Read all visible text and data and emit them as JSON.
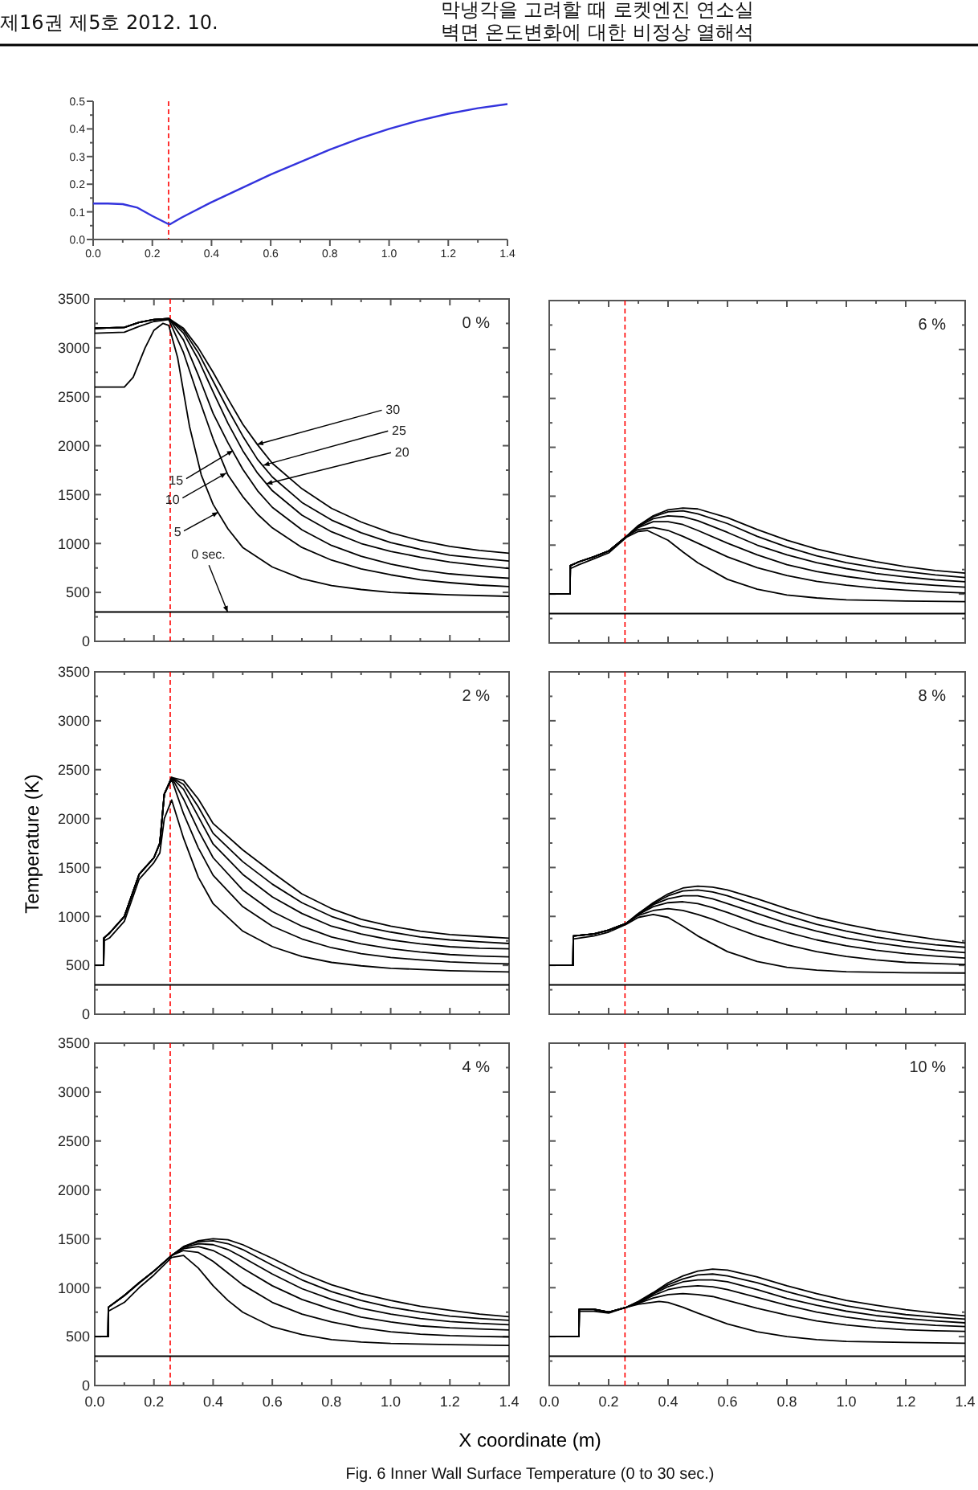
{
  "chart_data": [
    {
      "type": "line",
      "xlim": [
        0,
        1.4
      ],
      "ylim": [
        0,
        0.5
      ],
      "xticks": [
        {
          "value": 0,
          "label": "0.0"
        },
        {
          "value": 0.2,
          "label": "0.2"
        },
        {
          "value": 0.4,
          "label": "0.4"
        },
        {
          "value": 0.6,
          "label": "0.6"
        },
        {
          "value": 0.8,
          "label": "0.8"
        },
        {
          "value": 1.0,
          "label": "1.0"
        },
        {
          "value": 1.2,
          "label": "1.2"
        },
        {
          "value": 1.4,
          "label": "1.4"
        }
      ],
      "yticks": [
        {
          "value": 0,
          "label": "0.0"
        },
        {
          "value": 0.1,
          "label": "0.1"
        },
        {
          "value": 0.2,
          "label": "0.2"
        },
        {
          "value": 0.3,
          "label": "0.3"
        },
        {
          "value": 0.4,
          "label": "0.4"
        },
        {
          "value": 0.5,
          "label": "0.5"
        }
      ],
      "ref_lines": [
        {
          "axis": "x",
          "value": 0.255,
          "color": "#ff0000",
          "line_style": "dashed"
        }
      ],
      "annotations": [
        "제16권 제5호 2012. 10.",
        "막냉각을 고려할 때 로켓엔진 연소실",
        "벽면 온도변화에 대한 비정상 열해석"
      ],
      "series": [
        {
          "color": "#3333dd",
          "x": [
            0,
            0.05,
            0.1,
            0.15,
            0.2,
            0.25,
            0.26,
            0.3,
            0.4,
            0.5,
            0.6,
            0.7,
            0.8,
            0.9,
            1.0,
            1.1,
            1.2,
            1.3,
            1.4
          ],
          "values": [
            0.13,
            0.13,
            0.128,
            0.115,
            0.085,
            0.058,
            0.055,
            0.08,
            0.135,
            0.185,
            0.235,
            0.28,
            0.325,
            0.365,
            0.4,
            0.43,
            0.455,
            0.475,
            0.49
          ]
        }
      ]
    },
    {
      "type": "line",
      "title": "0 %",
      "xlim": [
        0,
        1.4
      ],
      "ylim": [
        0,
        3500
      ],
      "tick_labels": "y",
      "xticks": [
        0,
        0.2,
        0.4,
        0.6,
        0.8,
        1.0,
        1.2,
        1.4
      ],
      "yticks": [
        0,
        500,
        1000,
        1500,
        2000,
        2500,
        3000,
        3500
      ],
      "ref_lines": [
        {
          "axis": "x",
          "value": 0.255,
          "color": "#ff0000",
          "line_style": "dashed"
        }
      ],
      "annotations": [
        {
          "text": "30",
          "x": 0.549,
          "y": 2013
        },
        {
          "text": "25",
          "x": 0.57,
          "y": 1800
        },
        {
          "text": "20",
          "x": 0.58,
          "y": 1610
        },
        {
          "text": "15",
          "x": 0.467,
          "y": 1950
        },
        {
          "text": "10",
          "x": 0.444,
          "y": 1720
        },
        {
          "text": "5",
          "x": 0.417,
          "y": 1320
        },
        {
          "text": "0 sec.",
          "x": 0.449,
          "y": 300
        }
      ],
      "series": [
        {
          "color": "#000000",
          "x": [
            0,
            1.4
          ],
          "values": [
            300,
            300
          ]
        },
        {
          "color": "#000000",
          "x": [
            0,
            0.1,
            0.13,
            0.17,
            0.2,
            0.23,
            0.25,
            0.28,
            0.32,
            0.36,
            0.4,
            0.45,
            0.5,
            0.6,
            0.7,
            0.8,
            0.9,
            1.0,
            1.2,
            1.4
          ],
          "values": [
            2600,
            2600,
            2700,
            3000,
            3180,
            3250,
            3230,
            2900,
            2200,
            1700,
            1400,
            1150,
            960,
            760,
            640,
            570,
            530,
            500,
            475,
            460
          ]
        },
        {
          "color": "#000000",
          "x": [
            0,
            0.1,
            0.15,
            0.2,
            0.25,
            0.3,
            0.35,
            0.4,
            0.45,
            0.5,
            0.55,
            0.6,
            0.7,
            0.8,
            0.9,
            1.0,
            1.1,
            1.2,
            1.3,
            1.4
          ],
          "values": [
            3150,
            3160,
            3220,
            3270,
            3290,
            2950,
            2500,
            2070,
            1700,
            1480,
            1300,
            1160,
            960,
            830,
            740,
            680,
            630,
            600,
            575,
            560
          ]
        },
        {
          "color": "#000000",
          "x": [
            0,
            0.1,
            0.15,
            0.2,
            0.25,
            0.3,
            0.35,
            0.4,
            0.45,
            0.5,
            0.55,
            0.6,
            0.7,
            0.8,
            0.9,
            1.0,
            1.1,
            1.2,
            1.3,
            1.4
          ],
          "values": [
            3200,
            3210,
            3260,
            3290,
            3300,
            3080,
            2720,
            2330,
            2030,
            1760,
            1540,
            1370,
            1140,
            980,
            870,
            790,
            730,
            690,
            665,
            645
          ]
        },
        {
          "color": "#000000",
          "x": [
            0,
            0.1,
            0.15,
            0.2,
            0.25,
            0.3,
            0.35,
            0.4,
            0.45,
            0.5,
            0.55,
            0.6,
            0.7,
            0.8,
            0.9,
            1.0,
            1.1,
            1.2,
            1.3,
            1.4
          ],
          "values": [
            3200,
            3210,
            3260,
            3290,
            3300,
            3150,
            2880,
            2550,
            2230,
            1950,
            1720,
            1540,
            1290,
            1120,
            1000,
            920,
            860,
            810,
            775,
            745
          ]
        },
        {
          "color": "#000000",
          "x": [
            0,
            0.1,
            0.15,
            0.2,
            0.25,
            0.3,
            0.35,
            0.4,
            0.45,
            0.5,
            0.55,
            0.6,
            0.7,
            0.8,
            0.9,
            1.0,
            1.1,
            1.2,
            1.3,
            1.4
          ],
          "values": [
            3200,
            3210,
            3260,
            3290,
            3300,
            3180,
            2950,
            2660,
            2370,
            2100,
            1860,
            1680,
            1420,
            1240,
            1110,
            1010,
            940,
            880,
            850,
            820
          ]
        },
        {
          "color": "#000000",
          "x": [
            0,
            0.1,
            0.15,
            0.2,
            0.25,
            0.3,
            0.35,
            0.4,
            0.45,
            0.5,
            0.55,
            0.6,
            0.7,
            0.8,
            0.9,
            1.0,
            1.1,
            1.2,
            1.3,
            1.4
          ],
          "values": [
            3200,
            3210,
            3260,
            3290,
            3300,
            3200,
            3000,
            2750,
            2480,
            2220,
            2010,
            1820,
            1560,
            1360,
            1220,
            1110,
            1030,
            970,
            930,
            900
          ]
        }
      ]
    },
    {
      "type": "line",
      "title": "6 %",
      "xlim": [
        0,
        1.4
      ],
      "ylim": [
        0,
        3500
      ],
      "tick_labels": false,
      "xticks": [
        0,
        0.2,
        0.4,
        0.6,
        0.8,
        1.0,
        1.2,
        1.4
      ],
      "yticks": [
        0,
        500,
        1000,
        1500,
        2000,
        2500,
        3000,
        3500
      ],
      "ref_lines": [
        {
          "axis": "x",
          "value": 0.255,
          "color": "#ff0000",
          "line_style": "dashed"
        }
      ],
      "series": [
        {
          "color": "#000000",
          "x": [
            0,
            1.4
          ],
          "values": [
            300,
            300
          ]
        },
        {
          "color": "#000000",
          "x": [
            0,
            0.07,
            0.071,
            0.1,
            0.15,
            0.2,
            0.26,
            0.3,
            0.33,
            0.4,
            0.45,
            0.5,
            0.6,
            0.7,
            0.8,
            0.9,
            1.0,
            1.2,
            1.4
          ],
          "values": [
            500,
            500,
            760,
            800,
            860,
            920,
            1080,
            1140,
            1150,
            1050,
            930,
            820,
            650,
            550,
            490,
            460,
            440,
            428,
            422
          ]
        },
        {
          "color": "#000000",
          "x": [
            0,
            0.07,
            0.071,
            0.1,
            0.15,
            0.2,
            0.26,
            0.3,
            0.35,
            0.4,
            0.45,
            0.5,
            0.6,
            0.7,
            0.8,
            0.9,
            1.0,
            1.1,
            1.2,
            1.3,
            1.4
          ],
          "values": [
            500,
            500,
            790,
            830,
            880,
            940,
            1090,
            1160,
            1180,
            1150,
            1090,
            1020,
            880,
            770,
            690,
            630,
            590,
            560,
            540,
            522,
            510
          ]
        },
        {
          "color": "#000000",
          "x": [
            0,
            0.07,
            0.071,
            0.1,
            0.15,
            0.2,
            0.26,
            0.3,
            0.35,
            0.4,
            0.45,
            0.5,
            0.6,
            0.7,
            0.8,
            0.9,
            1.0,
            1.1,
            1.2,
            1.3,
            1.4
          ],
          "values": [
            500,
            500,
            790,
            830,
            880,
            940,
            1090,
            1180,
            1240,
            1240,
            1210,
            1150,
            1020,
            900,
            800,
            730,
            680,
            640,
            610,
            588,
            570
          ]
        },
        {
          "color": "#000000",
          "x": [
            0,
            0.07,
            0.071,
            0.1,
            0.15,
            0.2,
            0.26,
            0.3,
            0.35,
            0.4,
            0.45,
            0.5,
            0.6,
            0.7,
            0.8,
            0.9,
            1.0,
            1.1,
            1.2,
            1.3,
            1.4
          ],
          "values": [
            500,
            500,
            790,
            830,
            880,
            940,
            1090,
            1190,
            1270,
            1300,
            1290,
            1250,
            1130,
            1000,
            900,
            820,
            760,
            710,
            675,
            645,
            625
          ]
        },
        {
          "color": "#000000",
          "x": [
            0,
            0.07,
            0.071,
            0.1,
            0.15,
            0.2,
            0.26,
            0.3,
            0.35,
            0.4,
            0.45,
            0.5,
            0.6,
            0.7,
            0.8,
            0.9,
            1.0,
            1.1,
            1.2,
            1.3,
            1.4
          ],
          "values": [
            500,
            500,
            790,
            830,
            880,
            940,
            1090,
            1200,
            1290,
            1340,
            1350,
            1320,
            1220,
            1090,
            980,
            890,
            820,
            770,
            730,
            695,
            669
          ]
        },
        {
          "color": "#000000",
          "x": [
            0,
            0.07,
            0.071,
            0.1,
            0.15,
            0.2,
            0.26,
            0.3,
            0.35,
            0.4,
            0.45,
            0.5,
            0.6,
            0.7,
            0.8,
            0.9,
            1.0,
            1.1,
            1.2,
            1.3,
            1.4
          ],
          "values": [
            500,
            500,
            790,
            830,
            880,
            940,
            1090,
            1200,
            1300,
            1360,
            1380,
            1370,
            1280,
            1160,
            1050,
            960,
            890,
            830,
            780,
            740,
            713
          ]
        }
      ]
    },
    {
      "type": "line",
      "title": "2 %",
      "ylabel": "Temperature (K)",
      "xlim": [
        0,
        1.4
      ],
      "ylim": [
        0,
        3500
      ],
      "tick_labels": "y",
      "xticks": [
        0,
        0.2,
        0.4,
        0.6,
        0.8,
        1.0,
        1.2,
        1.4
      ],
      "yticks": [
        0,
        500,
        1000,
        1500,
        2000,
        2500,
        3000,
        3500
      ],
      "ref_lines": [
        {
          "axis": "x",
          "value": 0.255,
          "color": "#ff0000",
          "line_style": "dashed"
        }
      ],
      "series": [
        {
          "color": "#000000",
          "x": [
            0,
            1.4
          ],
          "values": [
            300,
            300
          ]
        },
        {
          "color": "#000000",
          "x": [
            0,
            0.03,
            0.031,
            0.05,
            0.1,
            0.15,
            0.2,
            0.22,
            0.235,
            0.26,
            0.3,
            0.35,
            0.4,
            0.5,
            0.6,
            0.7,
            0.8,
            0.9,
            1.0,
            1.2,
            1.4
          ],
          "values": [
            500,
            500,
            750,
            780,
            950,
            1380,
            1550,
            1650,
            2000,
            2190,
            1800,
            1400,
            1130,
            850,
            690,
            590,
            530,
            495,
            470,
            445,
            433
          ]
        },
        {
          "color": "#000000",
          "x": [
            0,
            0.03,
            0.031,
            0.05,
            0.1,
            0.15,
            0.2,
            0.22,
            0.235,
            0.26,
            0.3,
            0.35,
            0.4,
            0.5,
            0.6,
            0.7,
            0.8,
            0.9,
            1.0,
            1.1,
            1.2,
            1.3,
            1.4
          ],
          "values": [
            500,
            500,
            780,
            830,
            1000,
            1430,
            1600,
            1750,
            2250,
            2400,
            2050,
            1700,
            1420,
            1100,
            900,
            770,
            680,
            620,
            580,
            555,
            535,
            522,
            515
          ]
        },
        {
          "color": "#000000",
          "x": [
            0,
            0.03,
            0.031,
            0.05,
            0.1,
            0.15,
            0.2,
            0.22,
            0.235,
            0.26,
            0.3,
            0.35,
            0.4,
            0.5,
            0.6,
            0.7,
            0.8,
            0.9,
            1.0,
            1.1,
            1.2,
            1.3,
            1.4
          ],
          "values": [
            500,
            500,
            780,
            830,
            1000,
            1430,
            1600,
            1750,
            2250,
            2420,
            2200,
            1880,
            1600,
            1270,
            1050,
            900,
            790,
            720,
            670,
            635,
            610,
            595,
            586
          ]
        },
        {
          "color": "#000000",
          "x": [
            0,
            0.03,
            0.031,
            0.05,
            0.1,
            0.15,
            0.2,
            0.22,
            0.235,
            0.26,
            0.3,
            0.35,
            0.4,
            0.5,
            0.6,
            0.7,
            0.8,
            0.9,
            1.0,
            1.1,
            1.2,
            1.3,
            1.4
          ],
          "values": [
            500,
            500,
            780,
            830,
            1000,
            1430,
            1600,
            1750,
            2250,
            2420,
            2300,
            2020,
            1740,
            1430,
            1200,
            1030,
            900,
            820,
            760,
            720,
            690,
            675,
            668
          ]
        },
        {
          "color": "#000000",
          "x": [
            0,
            0.03,
            0.031,
            0.05,
            0.1,
            0.15,
            0.2,
            0.22,
            0.235,
            0.26,
            0.3,
            0.35,
            0.4,
            0.5,
            0.6,
            0.7,
            0.8,
            0.9,
            1.0,
            1.1,
            1.2,
            1.3,
            1.4
          ],
          "values": [
            500,
            500,
            780,
            830,
            1000,
            1430,
            1600,
            1750,
            2250,
            2420,
            2350,
            2120,
            1850,
            1560,
            1330,
            1140,
            1000,
            900,
            840,
            790,
            760,
            740,
            723
          ]
        },
        {
          "color": "#000000",
          "x": [
            0,
            0.03,
            0.031,
            0.05,
            0.1,
            0.15,
            0.2,
            0.22,
            0.235,
            0.26,
            0.3,
            0.35,
            0.4,
            0.5,
            0.6,
            0.7,
            0.8,
            0.9,
            1.0,
            1.1,
            1.2,
            1.3,
            1.4
          ],
          "values": [
            500,
            500,
            780,
            830,
            1000,
            1430,
            1600,
            1750,
            2250,
            2420,
            2390,
            2200,
            1950,
            1680,
            1450,
            1230,
            1080,
            970,
            900,
            850,
            815,
            795,
            778
          ]
        }
      ]
    },
    {
      "type": "line",
      "title": "8 %",
      "xlim": [
        0,
        1.4
      ],
      "ylim": [
        0,
        3500
      ],
      "tick_labels": false,
      "xticks": [
        0,
        0.2,
        0.4,
        0.6,
        0.8,
        1.0,
        1.2,
        1.4
      ],
      "yticks": [
        0,
        500,
        1000,
        1500,
        2000,
        2500,
        3000,
        3500
      ],
      "ref_lines": [
        {
          "axis": "x",
          "value": 0.255,
          "color": "#ff0000",
          "line_style": "dashed"
        }
      ],
      "series": [
        {
          "color": "#000000",
          "x": [
            0,
            1.4
          ],
          "values": [
            300,
            300
          ]
        },
        {
          "color": "#000000",
          "x": [
            0,
            0.08,
            0.081,
            0.15,
            0.2,
            0.26,
            0.3,
            0.35,
            0.4,
            0.45,
            0.5,
            0.6,
            0.7,
            0.8,
            0.9,
            1.0,
            1.2,
            1.4
          ],
          "values": [
            500,
            500,
            770,
            800,
            840,
            920,
            990,
            1020,
            990,
            900,
            800,
            640,
            540,
            480,
            450,
            435,
            425,
            421
          ]
        },
        {
          "color": "#000000",
          "x": [
            0,
            0.08,
            0.081,
            0.15,
            0.2,
            0.26,
            0.3,
            0.35,
            0.4,
            0.45,
            0.5,
            0.55,
            0.6,
            0.7,
            0.8,
            0.9,
            1.0,
            1.1,
            1.2,
            1.3,
            1.4
          ],
          "values": [
            500,
            500,
            800,
            820,
            860,
            930,
            1010,
            1060,
            1080,
            1060,
            1020,
            970,
            910,
            800,
            710,
            640,
            590,
            555,
            530,
            518,
            509
          ]
        },
        {
          "color": "#000000",
          "x": [
            0,
            0.08,
            0.081,
            0.15,
            0.2,
            0.26,
            0.3,
            0.35,
            0.4,
            0.45,
            0.5,
            0.55,
            0.6,
            0.7,
            0.8,
            0.9,
            1.0,
            1.1,
            1.2,
            1.3,
            1.4
          ],
          "values": [
            500,
            500,
            800,
            820,
            860,
            930,
            1020,
            1100,
            1140,
            1150,
            1130,
            1090,
            1040,
            930,
            840,
            760,
            700,
            655,
            620,
            595,
            574
          ]
        },
        {
          "color": "#000000",
          "x": [
            0,
            0.08,
            0.081,
            0.15,
            0.2,
            0.26,
            0.3,
            0.35,
            0.4,
            0.45,
            0.5,
            0.55,
            0.6,
            0.7,
            0.8,
            0.9,
            1.0,
            1.1,
            1.2,
            1.3,
            1.4
          ],
          "values": [
            500,
            500,
            800,
            820,
            860,
            930,
            1025,
            1120,
            1180,
            1210,
            1210,
            1180,
            1130,
            1030,
            930,
            850,
            780,
            730,
            690,
            655,
            629
          ]
        },
        {
          "color": "#000000",
          "x": [
            0,
            0.08,
            0.081,
            0.15,
            0.2,
            0.26,
            0.3,
            0.35,
            0.4,
            0.45,
            0.5,
            0.55,
            0.6,
            0.7,
            0.8,
            0.9,
            1.0,
            1.1,
            1.2,
            1.3,
            1.4
          ],
          "values": [
            500,
            500,
            800,
            820,
            860,
            930,
            1030,
            1130,
            1210,
            1260,
            1270,
            1250,
            1210,
            1110,
            1010,
            920,
            850,
            790,
            745,
            710,
            684
          ]
        },
        {
          "color": "#000000",
          "x": [
            0,
            0.08,
            0.081,
            0.15,
            0.2,
            0.26,
            0.3,
            0.35,
            0.4,
            0.45,
            0.5,
            0.55,
            0.6,
            0.7,
            0.8,
            0.9,
            1.0,
            1.1,
            1.2,
            1.3,
            1.4
          ],
          "values": [
            500,
            500,
            800,
            820,
            860,
            930,
            1030,
            1140,
            1230,
            1290,
            1310,
            1300,
            1270,
            1180,
            1080,
            990,
            920,
            860,
            810,
            765,
            728
          ]
        }
      ]
    },
    {
      "type": "line",
      "title": "4 %",
      "xlabel": "X coordinate (m)",
      "xlim": [
        0,
        1.4
      ],
      "ylim": [
        0,
        3500
      ],
      "xticks": [
        {
          "value": 0,
          "label": "0.0"
        },
        {
          "value": 0.2,
          "label": "0.2"
        },
        {
          "value": 0.4,
          "label": "0.4"
        },
        {
          "value": 0.6,
          "label": "0.6"
        },
        {
          "value": 0.8,
          "label": "0.8"
        },
        {
          "value": 1.0,
          "label": "1.0"
        },
        {
          "value": 1.2,
          "label": "1.2"
        },
        {
          "value": 1.4,
          "label": "1.4"
        }
      ],
      "yticks": [
        0,
        500,
        1000,
        1500,
        2000,
        2500,
        3000,
        3500
      ],
      "ref_lines": [
        {
          "axis": "x",
          "value": 0.255,
          "color": "#ff0000",
          "line_style": "dashed"
        }
      ],
      "series": [
        {
          "color": "#000000",
          "x": [
            0,
            1.4
          ],
          "values": [
            300,
            300
          ]
        },
        {
          "color": "#000000",
          "x": [
            0,
            0.045,
            0.046,
            0.1,
            0.15,
            0.2,
            0.26,
            0.3,
            0.35,
            0.4,
            0.45,
            0.5,
            0.6,
            0.7,
            0.8,
            0.9,
            1.0,
            1.2,
            1.4
          ],
          "values": [
            500,
            500,
            760,
            850,
            1000,
            1130,
            1310,
            1330,
            1200,
            1020,
            870,
            750,
            600,
            520,
            470,
            445,
            430,
            418,
            410
          ]
        },
        {
          "color": "#000000",
          "x": [
            0,
            0.045,
            0.046,
            0.1,
            0.15,
            0.2,
            0.26,
            0.3,
            0.35,
            0.4,
            0.45,
            0.5,
            0.6,
            0.7,
            0.8,
            0.9,
            1.0,
            1.1,
            1.2,
            1.3,
            1.4
          ],
          "values": [
            500,
            500,
            800,
            920,
            1050,
            1170,
            1330,
            1380,
            1360,
            1270,
            1150,
            1030,
            850,
            730,
            650,
            590,
            550,
            525,
            510,
            502,
            497
          ]
        },
        {
          "color": "#000000",
          "x": [
            0,
            0.045,
            0.046,
            0.1,
            0.15,
            0.2,
            0.26,
            0.3,
            0.35,
            0.4,
            0.45,
            0.5,
            0.6,
            0.7,
            0.8,
            0.9,
            1.0,
            1.1,
            1.2,
            1.3,
            1.4
          ],
          "values": [
            500,
            500,
            800,
            920,
            1050,
            1170,
            1330,
            1400,
            1420,
            1380,
            1300,
            1200,
            1020,
            880,
            780,
            700,
            650,
            610,
            590,
            578,
            568
          ]
        },
        {
          "color": "#000000",
          "x": [
            0,
            0.045,
            0.046,
            0.1,
            0.15,
            0.2,
            0.26,
            0.3,
            0.35,
            0.4,
            0.45,
            0.5,
            0.6,
            0.7,
            0.8,
            0.9,
            1.0,
            1.1,
            1.2,
            1.3,
            1.4
          ],
          "values": [
            500,
            500,
            800,
            920,
            1050,
            1170,
            1330,
            1410,
            1450,
            1440,
            1390,
            1310,
            1140,
            990,
            880,
            790,
            730,
            685,
            655,
            635,
            622
          ]
        },
        {
          "color": "#000000",
          "x": [
            0,
            0.045,
            0.046,
            0.1,
            0.15,
            0.2,
            0.26,
            0.3,
            0.35,
            0.4,
            0.45,
            0.5,
            0.6,
            0.7,
            0.8,
            0.9,
            1.0,
            1.1,
            1.2,
            1.3,
            1.4
          ],
          "values": [
            500,
            500,
            800,
            920,
            1050,
            1170,
            1330,
            1420,
            1470,
            1480,
            1450,
            1390,
            1230,
            1080,
            960,
            870,
            800,
            750,
            710,
            685,
            666
          ]
        },
        {
          "color": "#000000",
          "x": [
            0,
            0.045,
            0.046,
            0.1,
            0.15,
            0.2,
            0.26,
            0.3,
            0.35,
            0.4,
            0.45,
            0.5,
            0.6,
            0.7,
            0.8,
            0.9,
            1.0,
            1.1,
            1.2,
            1.3,
            1.4
          ],
          "values": [
            500,
            500,
            800,
            920,
            1050,
            1170,
            1330,
            1420,
            1480,
            1500,
            1490,
            1440,
            1300,
            1150,
            1030,
            940,
            870,
            810,
            770,
            730,
            704
          ]
        }
      ]
    },
    {
      "type": "line",
      "title": "10 %",
      "xlim": [
        0,
        1.4
      ],
      "ylim": [
        0,
        3500
      ],
      "tick_labels": "x",
      "xticks": [
        {
          "value": 0,
          "label": "0.0"
        },
        {
          "value": 0.2,
          "label": "0.2"
        },
        {
          "value": 0.4,
          "label": "0.4"
        },
        {
          "value": 0.6,
          "label": "0.6"
        },
        {
          "value": 0.8,
          "label": "0.8"
        },
        {
          "value": 1.0,
          "label": "1.0"
        },
        {
          "value": 1.2,
          "label": "1.2"
        },
        {
          "value": 1.4,
          "label": "1.4"
        }
      ],
      "yticks": [
        0,
        500,
        1000,
        1500,
        2000,
        2500,
        3000,
        3500
      ],
      "ref_lines": [
        {
          "axis": "x",
          "value": 0.255,
          "color": "#ff0000",
          "line_style": "dashed"
        }
      ],
      "annotations": [
        "Fig. 6 Inner Wall Surface Temperature (0 to 30 sec.)"
      ],
      "series": [
        {
          "color": "#000000",
          "x": [
            0,
            1.4
          ],
          "values": [
            300,
            300
          ]
        },
        {
          "color": "#000000",
          "x": [
            0,
            0.1,
            0.101,
            0.15,
            0.2,
            0.26,
            0.3,
            0.37,
            0.4,
            0.45,
            0.5,
            0.6,
            0.7,
            0.8,
            0.9,
            1.0,
            1.2,
            1.4
          ],
          "values": [
            500,
            500,
            760,
            760,
            740,
            800,
            830,
            860,
            850,
            800,
            740,
            630,
            550,
            500,
            470,
            450,
            440,
            433
          ]
        },
        {
          "color": "#000000",
          "x": [
            0,
            0.1,
            0.101,
            0.15,
            0.2,
            0.26,
            0.3,
            0.35,
            0.4,
            0.45,
            0.5,
            0.55,
            0.6,
            0.7,
            0.8,
            0.9,
            1.0,
            1.1,
            1.2,
            1.3,
            1.4
          ],
          "values": [
            500,
            500,
            780,
            780,
            750,
            800,
            840,
            895,
            930,
            940,
            930,
            910,
            870,
            790,
            720,
            660,
            620,
            590,
            570,
            560,
            553
          ]
        },
        {
          "color": "#000000",
          "x": [
            0,
            0.1,
            0.101,
            0.15,
            0.2,
            0.26,
            0.3,
            0.35,
            0.4,
            0.45,
            0.5,
            0.55,
            0.6,
            0.7,
            0.8,
            0.9,
            1.0,
            1.1,
            1.2,
            1.3,
            1.4
          ],
          "values": [
            500,
            500,
            780,
            780,
            750,
            800,
            845,
            920,
            980,
            1010,
            1020,
            1010,
            980,
            900,
            820,
            750,
            700,
            660,
            635,
            615,
            602
          ]
        },
        {
          "color": "#000000",
          "x": [
            0,
            0.1,
            0.101,
            0.15,
            0.2,
            0.26,
            0.3,
            0.35,
            0.4,
            0.45,
            0.5,
            0.55,
            0.6,
            0.7,
            0.8,
            0.9,
            1.0,
            1.1,
            1.2,
            1.3,
            1.4
          ],
          "values": [
            500,
            500,
            780,
            780,
            750,
            800,
            850,
            935,
            1010,
            1060,
            1080,
            1080,
            1060,
            980,
            890,
            820,
            760,
            715,
            685,
            660,
            641
          ]
        },
        {
          "color": "#000000",
          "x": [
            0,
            0.1,
            0.101,
            0.15,
            0.2,
            0.26,
            0.3,
            0.35,
            0.4,
            0.45,
            0.5,
            0.55,
            0.6,
            0.7,
            0.8,
            0.9,
            1.0,
            1.1,
            1.2,
            1.3,
            1.4
          ],
          "values": [
            500,
            500,
            780,
            780,
            750,
            800,
            855,
            945,
            1030,
            1090,
            1130,
            1140,
            1120,
            1050,
            960,
            880,
            815,
            765,
            725,
            700,
            679
          ]
        },
        {
          "color": "#000000",
          "x": [
            0,
            0.1,
            0.101,
            0.15,
            0.2,
            0.26,
            0.3,
            0.35,
            0.4,
            0.45,
            0.5,
            0.55,
            0.6,
            0.7,
            0.8,
            0.9,
            1.0,
            1.1,
            1.2,
            1.3,
            1.4
          ],
          "values": [
            500,
            500,
            780,
            780,
            750,
            800,
            860,
            950,
            1050,
            1120,
            1170,
            1190,
            1180,
            1110,
            1020,
            940,
            870,
            820,
            775,
            740,
            712
          ]
        }
      ]
    }
  ]
}
